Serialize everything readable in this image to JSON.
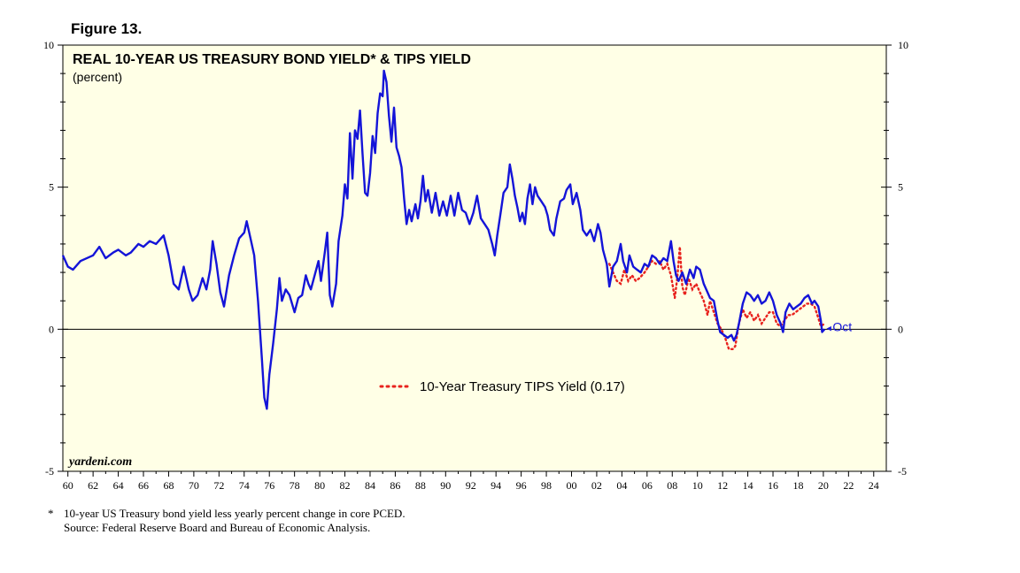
{
  "figure_label": "Figure 13.",
  "footnote": {
    "marker": "*",
    "note": "10-year US Treasury bond yield less yearly percent change in core PCED.",
    "source": "Source: Federal Reserve Board and Bureau of Economic Analysis."
  },
  "chart_data": {
    "type": "line",
    "title": "REAL 10-YEAR US TREASURY BOND YIELD* & TIPS YIELD",
    "subtitle": "(percent)",
    "watermark": "yardeni.com",
    "end_label": "Oct",
    "xlim": [
      1959.6,
      2025.0
    ],
    "ylim": [
      -5,
      10
    ],
    "y_ticks_left": [
      "10",
      "5",
      "0",
      "-5"
    ],
    "y_ticks_right": [
      "10",
      "5",
      "0",
      "-5"
    ],
    "y_tick_values": [
      10,
      5,
      0,
      -5
    ],
    "x_tick_labels": [
      "60",
      "62",
      "64",
      "66",
      "68",
      "70",
      "72",
      "74",
      "76",
      "78",
      "80",
      "82",
      "84",
      "86",
      "88",
      "90",
      "92",
      "94",
      "96",
      "98",
      "00",
      "02",
      "04",
      "06",
      "08",
      "10",
      "12",
      "14",
      "16",
      "18",
      "20",
      "22",
      "24"
    ],
    "x_tick_years": [
      1960,
      1962,
      1964,
      1966,
      1968,
      1970,
      1972,
      1974,
      1976,
      1978,
      1980,
      1982,
      1984,
      1986,
      1988,
      1990,
      1992,
      1994,
      1996,
      1998,
      2000,
      2002,
      2004,
      2006,
      2008,
      2010,
      2012,
      2014,
      2016,
      2018,
      2020,
      2022,
      2024
    ],
    "zero_line": true,
    "legend": {
      "position": "center",
      "entries": [
        {
          "name": "10-Year Treasury TIPS Yield (0.17)",
          "color": "#e8231e",
          "style": "dotted"
        }
      ]
    },
    "series": [
      {
        "name": "Real 10-Year US Treasury Bond Yield",
        "color": "#1414d8",
        "style": "solid",
        "points": [
          [
            1959.6,
            2.6
          ],
          [
            1960.0,
            2.2
          ],
          [
            1960.4,
            2.1
          ],
          [
            1961.0,
            2.4
          ],
          [
            1962.0,
            2.6
          ],
          [
            1962.5,
            2.9
          ],
          [
            1963.0,
            2.5
          ],
          [
            1963.6,
            2.7
          ],
          [
            1964.0,
            2.8
          ],
          [
            1964.6,
            2.6
          ],
          [
            1965.0,
            2.7
          ],
          [
            1965.6,
            3.0
          ],
          [
            1966.0,
            2.9
          ],
          [
            1966.5,
            3.1
          ],
          [
            1967.0,
            3.0
          ],
          [
            1967.6,
            3.3
          ],
          [
            1968.0,
            2.6
          ],
          [
            1968.4,
            1.6
          ],
          [
            1968.8,
            1.4
          ],
          [
            1969.2,
            2.2
          ],
          [
            1969.6,
            1.4
          ],
          [
            1969.9,
            1.0
          ],
          [
            1970.3,
            1.2
          ],
          [
            1970.7,
            1.8
          ],
          [
            1971.0,
            1.4
          ],
          [
            1971.3,
            2.1
          ],
          [
            1971.5,
            3.1
          ],
          [
            1971.8,
            2.3
          ],
          [
            1972.1,
            1.3
          ],
          [
            1972.4,
            0.8
          ],
          [
            1972.8,
            1.9
          ],
          [
            1973.2,
            2.6
          ],
          [
            1973.6,
            3.2
          ],
          [
            1974.0,
            3.4
          ],
          [
            1974.2,
            3.8
          ],
          [
            1974.5,
            3.2
          ],
          [
            1974.8,
            2.6
          ],
          [
            1975.1,
            1.0
          ],
          [
            1975.4,
            -1.0
          ],
          [
            1975.6,
            -2.4
          ],
          [
            1975.8,
            -2.8
          ],
          [
            1976.0,
            -1.6
          ],
          [
            1976.3,
            -0.5
          ],
          [
            1976.6,
            0.7
          ],
          [
            1976.8,
            1.8
          ],
          [
            1977.0,
            1.0
          ],
          [
            1977.3,
            1.4
          ],
          [
            1977.6,
            1.2
          ],
          [
            1978.0,
            0.6
          ],
          [
            1978.3,
            1.1
          ],
          [
            1978.6,
            1.2
          ],
          [
            1978.9,
            1.9
          ],
          [
            1979.1,
            1.6
          ],
          [
            1979.3,
            1.4
          ],
          [
            1979.6,
            1.9
          ],
          [
            1979.9,
            2.4
          ],
          [
            1980.1,
            1.7
          ],
          [
            1980.4,
            2.7
          ],
          [
            1980.6,
            3.4
          ],
          [
            1980.8,
            1.2
          ],
          [
            1981.0,
            0.8
          ],
          [
            1981.3,
            1.6
          ],
          [
            1981.5,
            3.1
          ],
          [
            1981.8,
            4.0
          ],
          [
            1982.0,
            5.1
          ],
          [
            1982.2,
            4.6
          ],
          [
            1982.4,
            6.9
          ],
          [
            1982.6,
            5.3
          ],
          [
            1982.8,
            7.0
          ],
          [
            1983.0,
            6.7
          ],
          [
            1983.2,
            7.7
          ],
          [
            1983.4,
            6.2
          ],
          [
            1983.6,
            4.8
          ],
          [
            1983.8,
            4.7
          ],
          [
            1984.0,
            5.5
          ],
          [
            1984.2,
            6.8
          ],
          [
            1984.4,
            6.2
          ],
          [
            1984.6,
            7.6
          ],
          [
            1984.8,
            8.3
          ],
          [
            1985.0,
            8.2
          ],
          [
            1985.1,
            9.1
          ],
          [
            1985.3,
            8.7
          ],
          [
            1985.5,
            7.5
          ],
          [
            1985.7,
            6.6
          ],
          [
            1985.9,
            7.8
          ],
          [
            1986.1,
            6.4
          ],
          [
            1986.3,
            6.1
          ],
          [
            1986.5,
            5.7
          ],
          [
            1986.7,
            4.6
          ],
          [
            1986.9,
            3.7
          ],
          [
            1987.1,
            4.2
          ],
          [
            1987.3,
            3.8
          ],
          [
            1987.6,
            4.4
          ],
          [
            1987.8,
            3.9
          ],
          [
            1988.0,
            4.5
          ],
          [
            1988.2,
            5.4
          ],
          [
            1988.4,
            4.5
          ],
          [
            1988.6,
            4.9
          ],
          [
            1988.9,
            4.1
          ],
          [
            1989.2,
            4.8
          ],
          [
            1989.5,
            4.0
          ],
          [
            1989.8,
            4.5
          ],
          [
            1990.1,
            4.0
          ],
          [
            1990.4,
            4.7
          ],
          [
            1990.7,
            4.0
          ],
          [
            1991.0,
            4.8
          ],
          [
            1991.3,
            4.2
          ],
          [
            1991.6,
            4.1
          ],
          [
            1991.9,
            3.7
          ],
          [
            1992.2,
            4.1
          ],
          [
            1992.5,
            4.7
          ],
          [
            1992.8,
            3.9
          ],
          [
            1993.1,
            3.7
          ],
          [
            1993.4,
            3.5
          ],
          [
            1993.7,
            3.0
          ],
          [
            1993.9,
            2.6
          ],
          [
            1994.1,
            3.3
          ],
          [
            1994.4,
            4.2
          ],
          [
            1994.6,
            4.8
          ],
          [
            1994.9,
            5.0
          ],
          [
            1995.1,
            5.8
          ],
          [
            1995.3,
            5.3
          ],
          [
            1995.5,
            4.7
          ],
          [
            1995.7,
            4.3
          ],
          [
            1995.9,
            3.8
          ],
          [
            1996.1,
            4.1
          ],
          [
            1996.3,
            3.7
          ],
          [
            1996.5,
            4.6
          ],
          [
            1996.7,
            5.1
          ],
          [
            1996.9,
            4.4
          ],
          [
            1997.1,
            5.0
          ],
          [
            1997.3,
            4.7
          ],
          [
            1997.6,
            4.5
          ],
          [
            1997.9,
            4.3
          ],
          [
            1998.1,
            4.0
          ],
          [
            1998.3,
            3.5
          ],
          [
            1998.6,
            3.3
          ],
          [
            1998.8,
            3.9
          ],
          [
            1999.1,
            4.5
          ],
          [
            1999.4,
            4.6
          ],
          [
            1999.6,
            4.9
          ],
          [
            1999.9,
            5.1
          ],
          [
            2000.1,
            4.4
          ],
          [
            2000.4,
            4.8
          ],
          [
            2000.7,
            4.2
          ],
          [
            2000.9,
            3.5
          ],
          [
            2001.2,
            3.3
          ],
          [
            2001.5,
            3.5
          ],
          [
            2001.8,
            3.1
          ],
          [
            2002.1,
            3.7
          ],
          [
            2002.3,
            3.4
          ],
          [
            2002.5,
            2.8
          ],
          [
            2002.8,
            2.3
          ],
          [
            2003.0,
            1.5
          ],
          [
            2003.3,
            2.2
          ],
          [
            2003.6,
            2.4
          ],
          [
            2003.9,
            3.0
          ],
          [
            2004.1,
            2.4
          ],
          [
            2004.4,
            2.0
          ],
          [
            2004.6,
            2.6
          ],
          [
            2004.9,
            2.2
          ],
          [
            2005.2,
            2.1
          ],
          [
            2005.5,
            2.0
          ],
          [
            2005.8,
            2.3
          ],
          [
            2006.1,
            2.2
          ],
          [
            2006.4,
            2.6
          ],
          [
            2006.7,
            2.5
          ],
          [
            2007.0,
            2.3
          ],
          [
            2007.3,
            2.5
          ],
          [
            2007.6,
            2.4
          ],
          [
            2007.9,
            3.1
          ],
          [
            2008.1,
            2.4
          ],
          [
            2008.3,
            1.9
          ],
          [
            2008.5,
            1.7
          ],
          [
            2008.8,
            2.0
          ],
          [
            2009.1,
            1.6
          ],
          [
            2009.4,
            2.1
          ],
          [
            2009.7,
            1.8
          ],
          [
            2009.9,
            2.2
          ],
          [
            2010.2,
            2.1
          ],
          [
            2010.5,
            1.6
          ],
          [
            2010.8,
            1.3
          ],
          [
            2011.0,
            1.1
          ],
          [
            2011.3,
            1.0
          ],
          [
            2011.6,
            0.3
          ],
          [
            2011.8,
            -0.1
          ],
          [
            2012.1,
            -0.2
          ],
          [
            2012.4,
            -0.3
          ],
          [
            2012.7,
            -0.2
          ],
          [
            2012.9,
            -0.4
          ],
          [
            2013.1,
            -0.2
          ],
          [
            2013.3,
            0.2
          ],
          [
            2013.6,
            0.9
          ],
          [
            2013.9,
            1.3
          ],
          [
            2014.2,
            1.2
          ],
          [
            2014.5,
            1.0
          ],
          [
            2014.8,
            1.2
          ],
          [
            2015.1,
            0.9
          ],
          [
            2015.4,
            1.0
          ],
          [
            2015.7,
            1.3
          ],
          [
            2016.0,
            1.0
          ],
          [
            2016.3,
            0.5
          ],
          [
            2016.6,
            0.2
          ],
          [
            2016.8,
            -0.1
          ],
          [
            2017.0,
            0.6
          ],
          [
            2017.3,
            0.9
          ],
          [
            2017.6,
            0.7
          ],
          [
            2017.9,
            0.8
          ],
          [
            2018.2,
            0.9
          ],
          [
            2018.5,
            1.1
          ],
          [
            2018.8,
            1.2
          ],
          [
            2019.1,
            0.9
          ],
          [
            2019.3,
            1.0
          ],
          [
            2019.6,
            0.8
          ],
          [
            2019.8,
            0.3
          ],
          [
            2019.9,
            -0.1
          ],
          [
            2020.1,
            0.0
          ]
        ]
      },
      {
        "name": "10-Year Treasury TIPS Yield",
        "color": "#e8231e",
        "style": "dotted",
        "points": [
          [
            2003.0,
            2.3
          ],
          [
            2003.3,
            2.0
          ],
          [
            2003.6,
            1.7
          ],
          [
            2003.9,
            1.6
          ],
          [
            2004.2,
            2.1
          ],
          [
            2004.5,
            1.7
          ],
          [
            2004.8,
            1.9
          ],
          [
            2005.1,
            1.7
          ],
          [
            2005.4,
            1.8
          ],
          [
            2005.8,
            2.0
          ],
          [
            2006.1,
            2.2
          ],
          [
            2006.4,
            2.4
          ],
          [
            2006.7,
            2.3
          ],
          [
            2007.0,
            2.4
          ],
          [
            2007.3,
            2.1
          ],
          [
            2007.6,
            2.3
          ],
          [
            2007.9,
            1.9
          ],
          [
            2008.2,
            1.1
          ],
          [
            2008.4,
            1.8
          ],
          [
            2008.6,
            2.9
          ],
          [
            2008.8,
            1.5
          ],
          [
            2009.0,
            1.2
          ],
          [
            2009.3,
            1.8
          ],
          [
            2009.6,
            1.4
          ],
          [
            2009.9,
            1.6
          ],
          [
            2010.2,
            1.3
          ],
          [
            2010.5,
            1.0
          ],
          [
            2010.8,
            0.5
          ],
          [
            2011.0,
            1.0
          ],
          [
            2011.3,
            0.6
          ],
          [
            2011.6,
            0.2
          ],
          [
            2011.9,
            0.0
          ],
          [
            2012.2,
            -0.3
          ],
          [
            2012.5,
            -0.7
          ],
          [
            2012.8,
            -0.7
          ],
          [
            2013.0,
            -0.6
          ],
          [
            2013.3,
            0.2
          ],
          [
            2013.6,
            0.7
          ],
          [
            2013.9,
            0.4
          ],
          [
            2014.2,
            0.6
          ],
          [
            2014.5,
            0.3
          ],
          [
            2014.8,
            0.5
          ],
          [
            2015.1,
            0.2
          ],
          [
            2015.4,
            0.4
          ],
          [
            2015.7,
            0.6
          ],
          [
            2016.0,
            0.6
          ],
          [
            2016.3,
            0.2
          ],
          [
            2016.6,
            0.1
          ],
          [
            2016.9,
            0.3
          ],
          [
            2017.2,
            0.5
          ],
          [
            2017.5,
            0.5
          ],
          [
            2017.8,
            0.6
          ],
          [
            2018.1,
            0.7
          ],
          [
            2018.4,
            0.8
          ],
          [
            2018.7,
            0.9
          ],
          [
            2019.0,
            0.9
          ],
          [
            2019.3,
            0.8
          ],
          [
            2019.6,
            0.4
          ],
          [
            2019.8,
            0.1
          ],
          [
            2020.0,
            0.17
          ]
        ]
      }
    ]
  }
}
